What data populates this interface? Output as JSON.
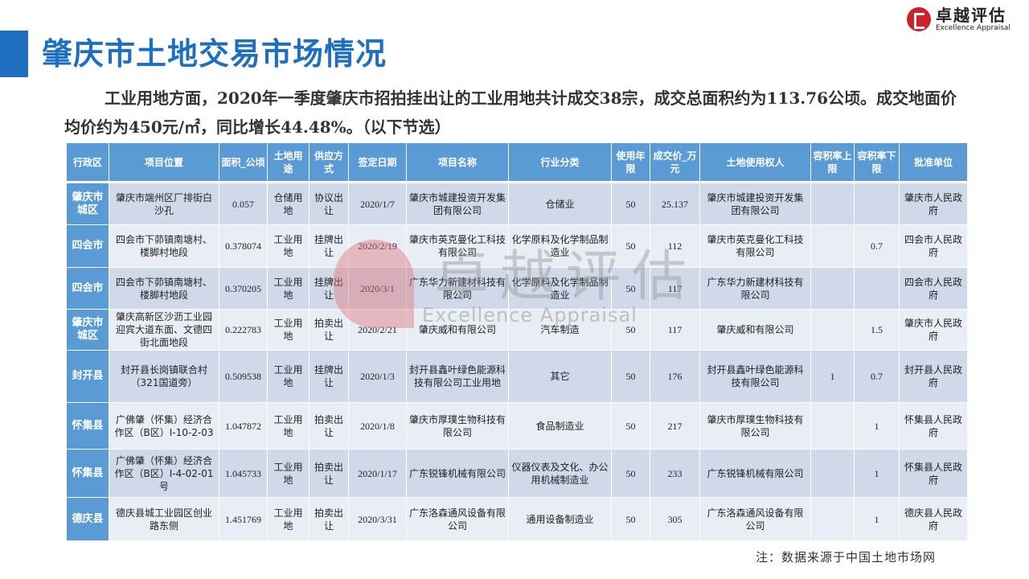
{
  "title": "肇庆市土地交易市场情况",
  "logo": {
    "cn": "卓越评估",
    "en": "Excellence Appraisal"
  },
  "intro": "工业用地方面，2020年一季度肇庆市招拍挂出让的工业用地共计成交38宗，成交总面积约为113.76公顷。成交地面价均价约为450元/㎡，同比增长44.48%。（以下节选）",
  "table": {
    "headers": [
      "行政区",
      "项目位置",
      "面积_公顷",
      "土地用途",
      "供应方式",
      "签定日期",
      "项目名称",
      "行业分类",
      "使用年限",
      "成交价_万元",
      "土地使用权人",
      "容积率上限",
      "容积率下限",
      "批准单位"
    ],
    "rows": [
      [
        "肇庆市城区",
        "肇庆市端州区厂排街白沙孔",
        "0.057",
        "仓储用地",
        "协议出让",
        "2020/1/7",
        "肇庆市城建投资开发集团有限公司",
        "仓储业",
        "50",
        "25.137",
        "肇庆市城建投资开发集团有限公司",
        "",
        "",
        "肇庆市人民政府"
      ],
      [
        "四会市",
        "四会市下茆镇南塘村、楼脚村地段",
        "0.378074",
        "工业用地",
        "挂牌出让",
        "2020/2/19",
        "肇庆市英克曼化工科技有限公司",
        "化学原料及化学制品制造业",
        "50",
        "112",
        "肇庆市英克曼化工科技有限公司",
        "",
        "0.7",
        "四会市人民政府"
      ],
      [
        "四会市",
        "四会市下茆镇南塘村、楼脚村地段",
        "0.370205",
        "工业用地",
        "挂牌出让",
        "2020/3/1",
        "广东华力新建材科技有限公司",
        "化学原料及化学制品制造业",
        "50",
        "117",
        "广东华力新建材科技有限公司",
        "",
        "",
        "四会市人民政府"
      ],
      [
        "肇庆市城区",
        "肇庆高新区沙沥工业园迎宾大道东面、文德四街北面地段",
        "0.222783",
        "工业用地",
        "拍卖出让",
        "2020/2/21",
        "肇庆威和有限公司",
        "汽车制造",
        "50",
        "117",
        "肇庆威和有限公司",
        "",
        "1.5",
        "肇庆市人民政府"
      ],
      [
        "封开县",
        "封开县长岗镇联合村（321国道旁）",
        "0.509538",
        "工业用地",
        "挂牌出让",
        "2020/1/3",
        "封开县鑫叶绿色能源科技有限公司工业用地",
        "其它",
        "50",
        "176",
        "封开县鑫叶绿色能源科技有限公司",
        "1",
        "0.7",
        "封开县人民政府"
      ],
      [
        "怀集县",
        "广佛肇（怀集）经济合作区（B区）I-10-2-03",
        "1.047872",
        "工业用地",
        "拍卖出让",
        "2020/1/8",
        "肇庆市厚璞生物科技有限公司",
        "食品制造业",
        "50",
        "217",
        "肇庆市厚璞生物科技有限公司",
        "",
        "1",
        "怀集县人民政府"
      ],
      [
        "怀集县",
        "广佛肇（怀集）经济合作区（B区）I-4-02-01号",
        "1.045733",
        "工业用地",
        "拍卖出让",
        "2020/1/17",
        "广东锐锋机械有限公司",
        "仪器仪表及文化、办公用机械制造业",
        "50",
        "233",
        "广东锐锋机械有限公司",
        "",
        "1",
        "怀集县人民政府"
      ],
      [
        "德庆县",
        "德庆县城工业园区创业路东侧",
        "1.451769",
        "工业用地",
        "拍卖出让",
        "2020/3/31",
        "广东洛森通风设备有限公司",
        "通用设备制造业",
        "50",
        "305",
        "广东洛森通风设备有限公司",
        "",
        "1",
        "德庆县人民政府"
      ]
    ]
  },
  "note": "注：数据来源于中国土地市场网"
}
